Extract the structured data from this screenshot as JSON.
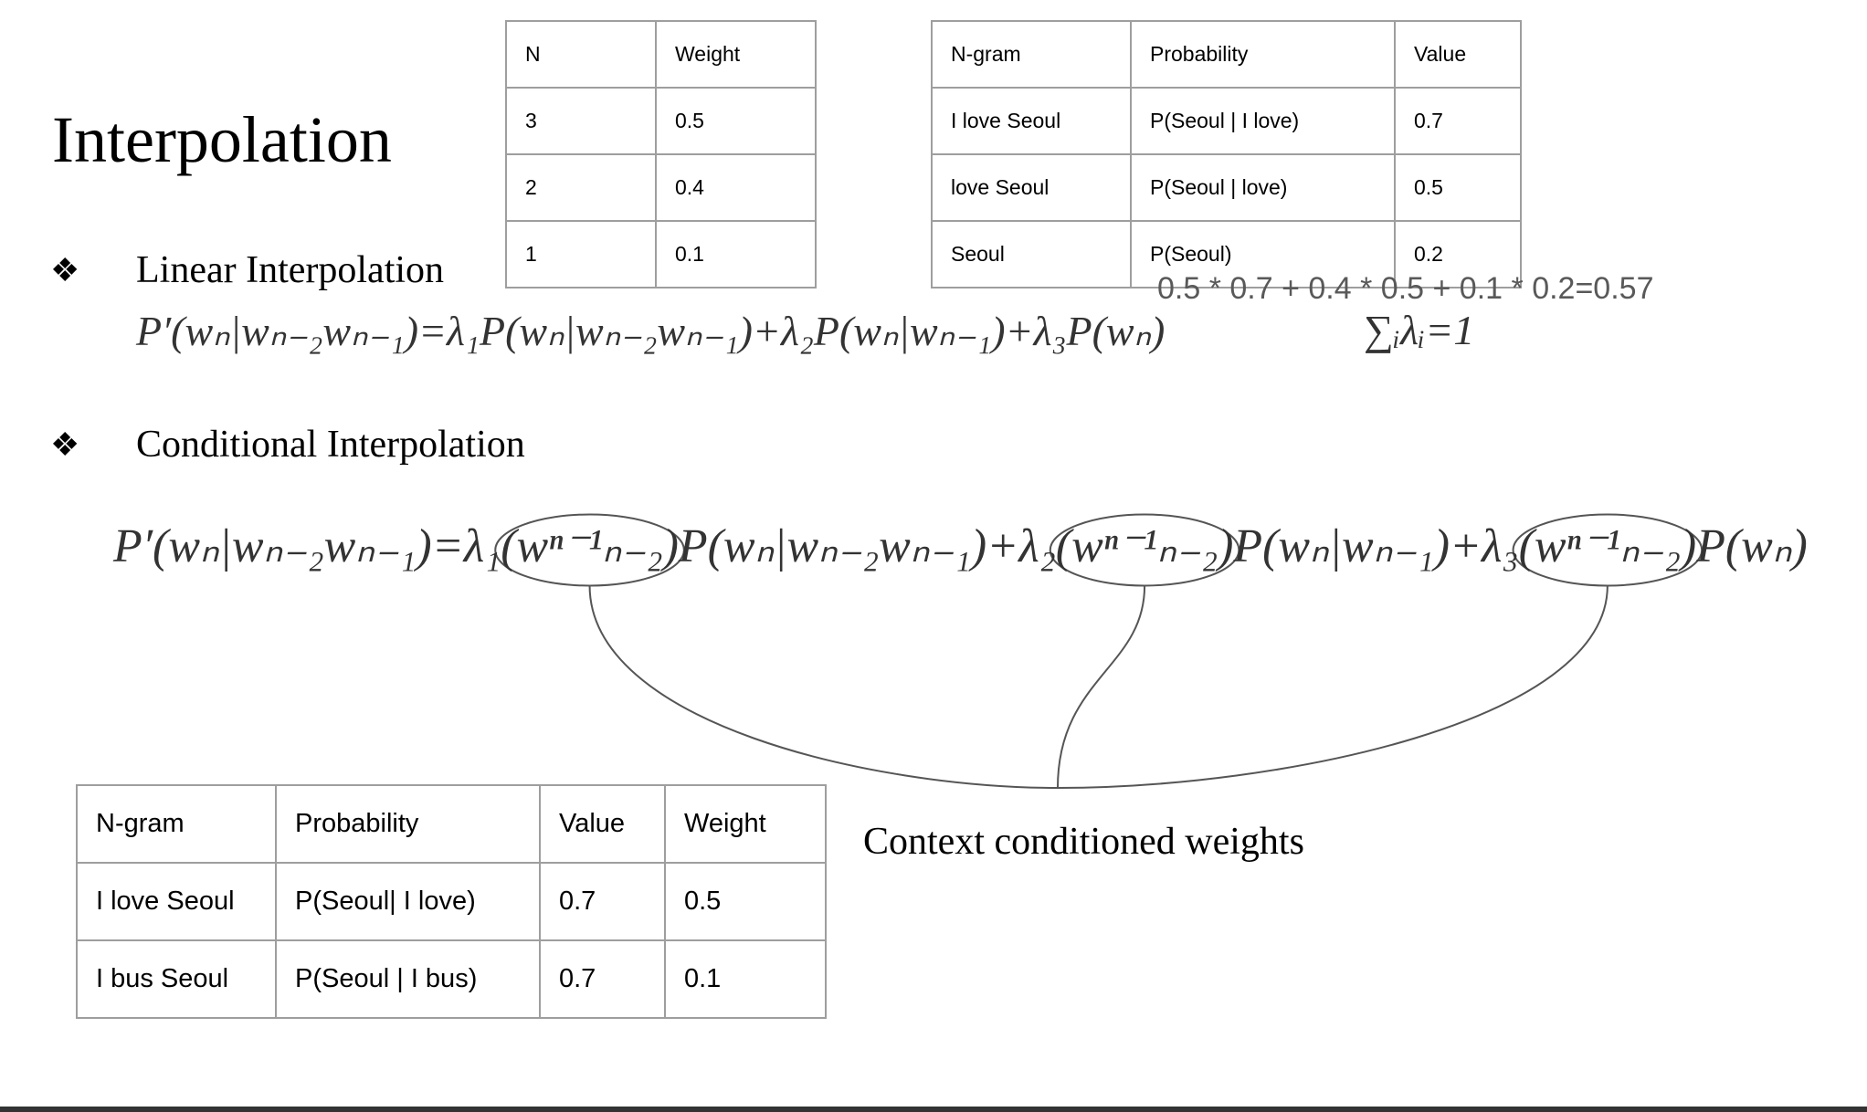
{
  "title": "Interpolation",
  "bullets": [
    {
      "marker": "❖",
      "label": "Linear Interpolation"
    },
    {
      "marker": "❖",
      "label": "Conditional Interpolation"
    }
  ],
  "weight_table": {
    "header": [
      "N",
      "Weight"
    ],
    "rows": [
      [
        "3",
        "0.5"
      ],
      [
        "2",
        "0.4"
      ],
      [
        "1",
        "0.1"
      ]
    ]
  },
  "ngram_table": {
    "header": [
      "N-gram",
      "Probability",
      "Value"
    ],
    "rows": [
      [
        "I love Seoul",
        "P(Seoul | I love)",
        "0.7"
      ],
      [
        "love Seoul",
        "P(Seoul | love)",
        "0.5"
      ],
      [
        "Seoul",
        "P(Seoul)",
        "0.2"
      ]
    ]
  },
  "calculation": "0.5 * 0.7 + 0.4 * 0.5 + 0.1 * 0.2=0.57",
  "linear_formula": "P′(wₙ|wₙ₋₂wₙ₋₁)=λ₁P(wₙ|wₙ₋₂wₙ₋₁)+λ₂P(wₙ|wₙ₋₁)+λ₃P(wₙ)",
  "sum_constraint": "∑ᵢλᵢ=1",
  "conditional_formula": {
    "parts": [
      {
        "text": "P′(wₙ|wₙ₋₂wₙ₋₁)=λ₁",
        "circled": false
      },
      {
        "text": "(wⁿ⁻¹ₙ₋₂)",
        "circled": true
      },
      {
        "text": "P(wₙ|wₙ₋₂wₙ₋₁)+λ₂",
        "circled": false
      },
      {
        "text": "(wⁿ⁻¹ₙ₋₂)",
        "circled": true
      },
      {
        "text": "P(wₙ|wₙ₋₁)+λ₃",
        "circled": false
      },
      {
        "text": "(wⁿ⁻¹ₙ₋₂)",
        "circled": true
      },
      {
        "text": "P(wₙ)",
        "circled": false
      }
    ]
  },
  "annotation": "Context conditioned weights",
  "context_table": {
    "header": [
      "N-gram",
      "Probability",
      "Value",
      "Weight"
    ],
    "rows": [
      [
        "I love Seoul",
        "P(Seoul| I love)",
        "0.7",
        "0.5"
      ],
      [
        "I bus Seoul",
        "P(Seoul | I bus)",
        "0.7",
        "0.1"
      ]
    ]
  }
}
